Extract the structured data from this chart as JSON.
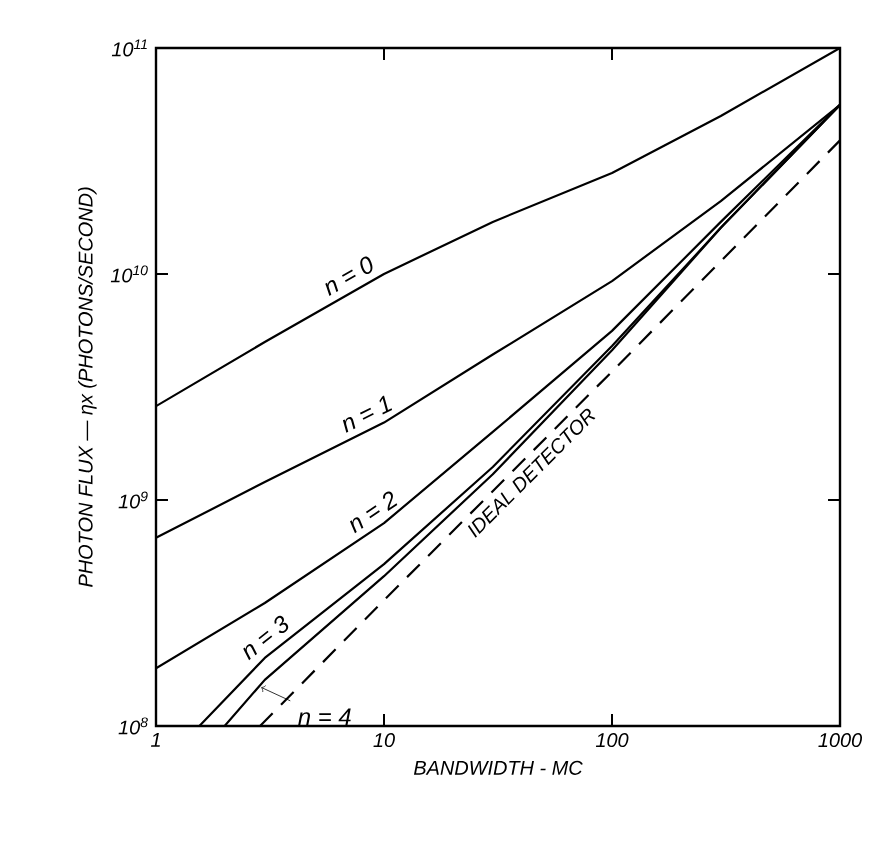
{
  "chart_data": {
    "type": "line",
    "xlabel": "BANDWIDTH - MC",
    "ylabel": "PHOTON FLUX — ηx (PHOTONS/SECOND)",
    "log": "xy",
    "xlim": [
      1,
      1000
    ],
    "xticks": [
      1,
      10,
      100,
      1000
    ],
    "ylim": [
      100000000,
      100000000000
    ],
    "yticks": [
      {
        "value": 100000000,
        "label": "10$^{8}$"
      },
      {
        "value": 1000000000,
        "label": "10$^{9}$"
      },
      {
        "value": 10000000000,
        "label": "10$^{10}$"
      },
      {
        "value": 100000000000,
        "label": "10$^{11}$"
      }
    ],
    "series": [
      {
        "name": "n = 0",
        "color": "#000000",
        "line_style": "solid",
        "x": [
          1,
          3,
          10,
          30,
          100,
          300,
          1000
        ],
        "values": [
          2600000000,
          5000000000,
          10000000000,
          17000000000,
          28000000000,
          50000000000,
          100000000000
        ]
      },
      {
        "name": "n = 1",
        "color": "#000000",
        "line_style": "solid",
        "x": [
          1,
          3,
          10,
          30,
          100,
          300,
          1000
        ],
        "values": [
          680000000,
          1200000000,
          2200000000,
          4400000000,
          9300000000,
          21000000000,
          56000000000
        ]
      },
      {
        "name": "n = 2",
        "color": "#000000",
        "line_style": "solid",
        "x": [
          1,
          3,
          10,
          30,
          100,
          300,
          1000
        ],
        "values": [
          180000000,
          350000000,
          790000000,
          2000000000,
          5600000000,
          17000000000,
          56000000000
        ]
      },
      {
        "name": "n = 3",
        "color": "#000000",
        "line_style": "solid",
        "x": [
          1.55,
          3,
          10,
          30,
          100,
          300,
          1000
        ],
        "values": [
          100000000,
          200000000,
          520000000,
          1400000000,
          4800000000,
          16000000000,
          56000000000
        ]
      },
      {
        "name": "n = 4",
        "color": "#000000",
        "line_style": "solid",
        "x": [
          2.0,
          3,
          10,
          30,
          100,
          300,
          1000
        ],
        "values": [
          100000000,
          160000000,
          460000000,
          1300000000,
          4600000000,
          16000000000,
          56000000000
        ]
      },
      {
        "name": "IDEAL DETECTOR",
        "color": "#000000",
        "line_style": "dashed",
        "x": [
          2.86,
          10,
          100,
          1000
        ],
        "values": [
          100000000,
          360000000,
          3700000000,
          39000000000
        ]
      }
    ]
  }
}
